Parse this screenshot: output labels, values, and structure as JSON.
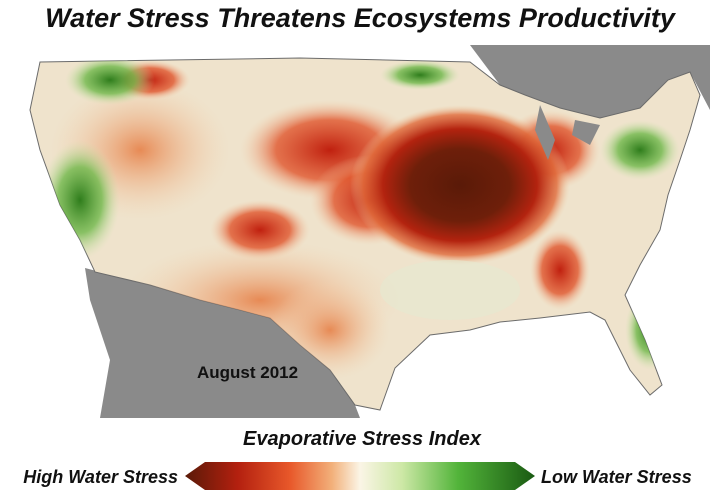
{
  "title": "Water Stress Threatens Ecosystems Productivity",
  "map": {
    "date_label": "August 2012"
  },
  "legend": {
    "title": "Evaporative Stress Index",
    "high_label": "High Water Stress",
    "low_label": "Low Water Stress"
  }
}
